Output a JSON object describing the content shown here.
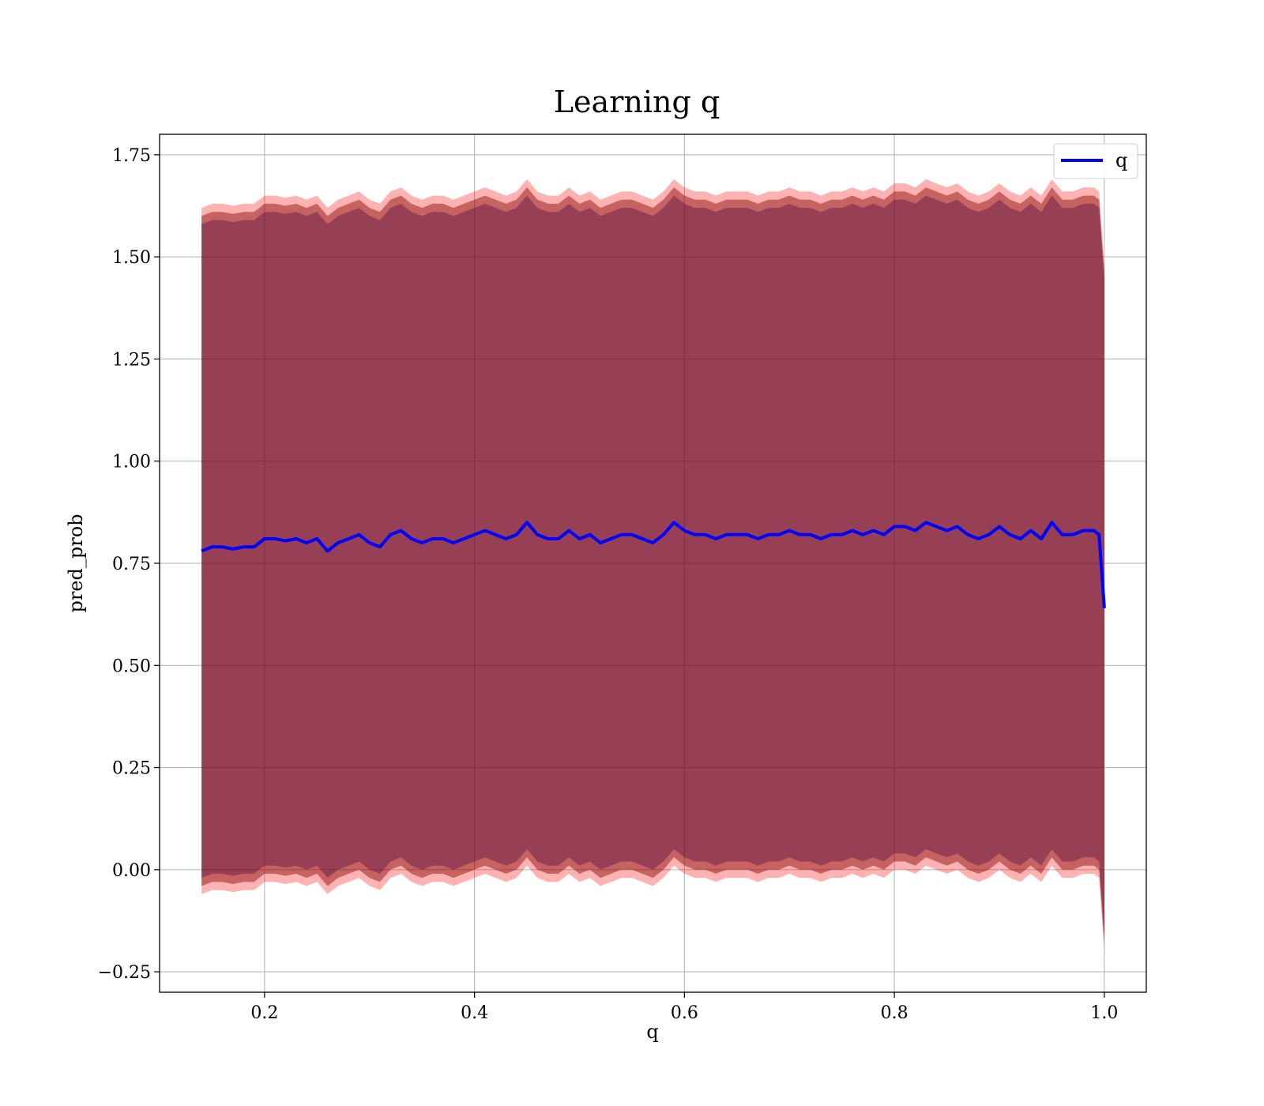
{
  "chart_data": {
    "type": "line",
    "title": "Learning q",
    "xlabel": "q",
    "ylabel": "pred_prob",
    "xlim": [
      0.1,
      1.04
    ],
    "ylim": [
      -0.3,
      1.8
    ],
    "xticks": [
      0.2,
      0.4,
      0.6,
      0.8,
      1.0
    ],
    "xtick_labels": [
      "0.2",
      "0.4",
      "0.6",
      "0.8",
      "1.0"
    ],
    "yticks": [
      -0.25,
      0.0,
      0.25,
      0.5,
      0.75,
      1.0,
      1.25,
      1.5,
      1.75
    ],
    "ytick_labels": [
      "−0.25",
      "0.00",
      "0.25",
      "0.50",
      "0.75",
      "1.00",
      "1.25",
      "1.50",
      "1.75"
    ],
    "grid": true,
    "legend": {
      "position": "top-right",
      "entries": [
        "q"
      ]
    },
    "colors": {
      "line": "#0000ff",
      "band_outer": "#ff0000",
      "band_inner": "#800000",
      "band_core": "#400040",
      "grid": "#b0b0b0"
    },
    "series": [
      {
        "name": "q",
        "x": [
          0.14,
          0.15,
          0.16,
          0.17,
          0.18,
          0.19,
          0.2,
          0.21,
          0.22,
          0.23,
          0.24,
          0.25,
          0.26,
          0.27,
          0.28,
          0.29,
          0.3,
          0.31,
          0.32,
          0.33,
          0.34,
          0.35,
          0.36,
          0.37,
          0.38,
          0.39,
          0.4,
          0.41,
          0.42,
          0.43,
          0.44,
          0.45,
          0.46,
          0.47,
          0.48,
          0.49,
          0.5,
          0.51,
          0.52,
          0.53,
          0.54,
          0.55,
          0.56,
          0.57,
          0.58,
          0.59,
          0.6,
          0.61,
          0.62,
          0.63,
          0.64,
          0.65,
          0.66,
          0.67,
          0.68,
          0.69,
          0.7,
          0.71,
          0.72,
          0.73,
          0.74,
          0.75,
          0.76,
          0.77,
          0.78,
          0.79,
          0.8,
          0.81,
          0.82,
          0.83,
          0.84,
          0.85,
          0.86,
          0.87,
          0.88,
          0.89,
          0.9,
          0.91,
          0.92,
          0.93,
          0.94,
          0.95,
          0.96,
          0.97,
          0.98,
          0.99,
          0.995,
          1.0
        ],
        "y": [
          0.78,
          0.79,
          0.79,
          0.785,
          0.79,
          0.79,
          0.81,
          0.81,
          0.805,
          0.81,
          0.8,
          0.81,
          0.78,
          0.8,
          0.81,
          0.82,
          0.8,
          0.79,
          0.82,
          0.83,
          0.81,
          0.8,
          0.81,
          0.81,
          0.8,
          0.81,
          0.82,
          0.83,
          0.82,
          0.81,
          0.82,
          0.85,
          0.82,
          0.81,
          0.81,
          0.83,
          0.81,
          0.82,
          0.8,
          0.81,
          0.82,
          0.82,
          0.81,
          0.8,
          0.82,
          0.85,
          0.83,
          0.82,
          0.82,
          0.81,
          0.82,
          0.82,
          0.82,
          0.81,
          0.82,
          0.82,
          0.83,
          0.82,
          0.82,
          0.81,
          0.82,
          0.82,
          0.83,
          0.82,
          0.83,
          0.82,
          0.84,
          0.84,
          0.83,
          0.85,
          0.84,
          0.83,
          0.84,
          0.82,
          0.81,
          0.82,
          0.84,
          0.82,
          0.81,
          0.83,
          0.81,
          0.85,
          0.82,
          0.82,
          0.83,
          0.83,
          0.82,
          0.64
        ],
        "band_outer_halfwidth": 0.84,
        "band_mid_halfwidth": 0.82,
        "band_inner_halfwidth": 0.8
      }
    ]
  }
}
